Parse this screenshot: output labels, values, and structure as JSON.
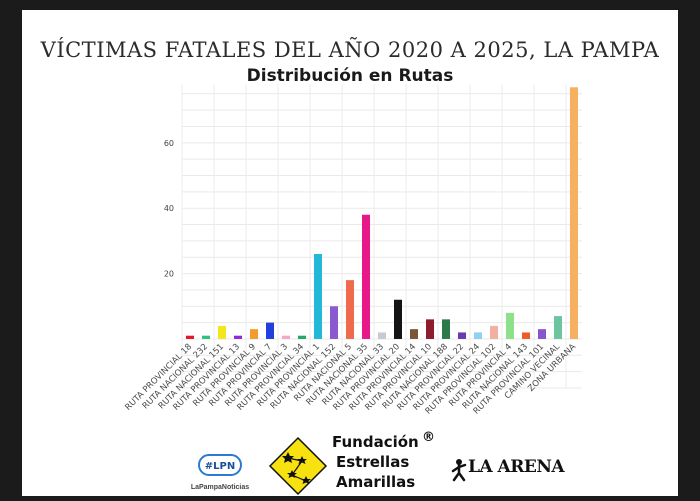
{
  "chart_data": {
    "type": "bar",
    "title": "VÍCTIMAS FATALES DEL AÑO 2020 A 2025, LA PAMPA",
    "subtitle": "Distribución en Rutas",
    "xlabel": "",
    "ylabel": "",
    "ylim": [
      -15,
      78
    ],
    "yticks": [
      20,
      40,
      60
    ],
    "grid": true,
    "legend": "none",
    "categories": [
      "RUTA PROVINCIAL 18",
      "RUTA NACIONAL 232",
      "RUTA NACIONAL 151",
      "RUTA PROVINCIAL 13",
      "RUTA PROVINCIAL 9",
      "RUTA PROVINCIAL 7",
      "RUTA PROVINCIAL 3",
      "RUTA PROVINCIAL 34",
      "RUTA PROVINCIAL 1",
      "RUTA NACIONAL 152",
      "RUTA NACIONAL 5",
      "RUTA NACIONAL 35",
      "RUTA NACIONAL 33",
      "RUTA PROVINCIAL 20",
      "RUTA PROVINCIAL 14",
      "RUTA PROVINCIAL 10",
      "RUTA NACIONAL 188",
      "RUTA PROVINCIAL 22",
      "RUTA PROVINCIAL 24",
      "RUTA PROVINCIAL 102",
      "RUTA PROVINCIAL 4",
      "RUTA NACIONAL 143",
      "RUTA PROVINCIAL 101",
      "CAMINO VECINAL",
      "ZONA URBANA"
    ],
    "values": [
      1,
      1,
      4,
      1,
      3,
      5,
      1,
      1,
      26,
      10,
      18,
      38,
      2,
      12,
      3,
      6,
      6,
      2,
      2,
      4,
      8,
      2,
      3,
      7,
      77
    ],
    "colors": [
      "#e8142a",
      "#2ec27e",
      "#f4e61a",
      "#8e2bd4",
      "#f39c2b",
      "#1f3fe0",
      "#f4a7c6",
      "#22a86b",
      "#22b8d8",
      "#8a5ad0",
      "#f06a4e",
      "#e8178a",
      "#c4ccd2",
      "#141414",
      "#7a5636",
      "#8e1c2c",
      "#2c7a4c",
      "#6a3ab0",
      "#8ed1f0",
      "#f2b0a0",
      "#8fe08a",
      "#f05a28",
      "#8855cc",
      "#6cc4a0",
      "#f6b060"
    ]
  },
  "footer": {
    "lpn_logo": "#LPN",
    "lpn_name": "LaPampaNoticias",
    "fundacion_line1": "Fundación",
    "fundacion_line2": "Estrellas",
    "fundacion_line3": "Amarillas",
    "registered_mark": "®",
    "arena_name": "LA ARENA",
    "star_logo_color": "#f7e10f"
  }
}
